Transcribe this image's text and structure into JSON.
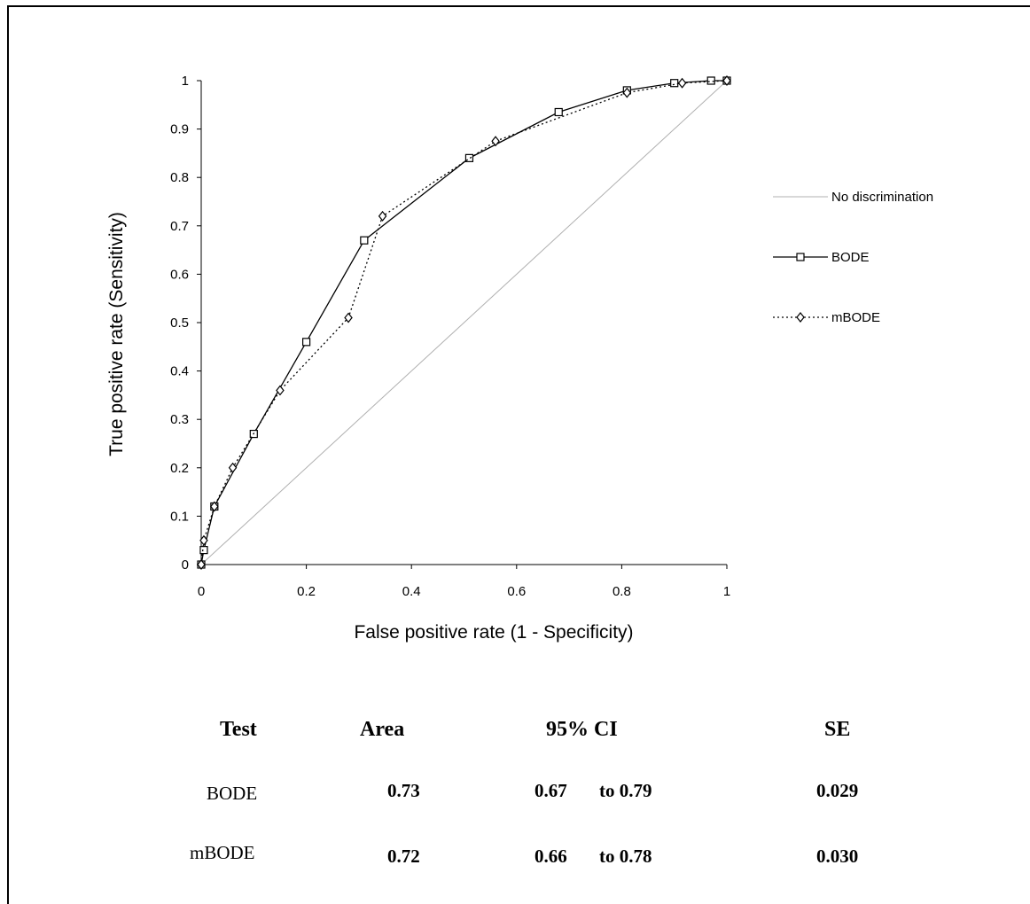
{
  "chart_data": {
    "type": "line",
    "xlabel": "False positive rate (1 - Specificity)",
    "ylabel": "True positive rate (Sensitivity)",
    "xlim": [
      0,
      1
    ],
    "ylim": [
      0,
      1
    ],
    "xticks": [
      "0",
      "0.2",
      "0.4",
      "0.6",
      "0.8",
      "1"
    ],
    "yticks": [
      "0",
      "0.1",
      "0.2",
      "0.3",
      "0.4",
      "0.5",
      "0.6",
      "0.7",
      "0.8",
      "0.9",
      "1"
    ],
    "grid": false,
    "legend_placement": "right",
    "series": [
      {
        "name": "No discrimination",
        "style": "solid-gray",
        "color": "#b0b0b0",
        "marker": "none",
        "x": [
          0,
          1
        ],
        "y": [
          0,
          1
        ]
      },
      {
        "name": "BODE",
        "style": "solid",
        "color": "#000000",
        "marker": "square",
        "x": [
          0,
          0.005,
          0.025,
          0.1,
          0.2,
          0.31,
          0.51,
          0.68,
          0.81,
          0.9,
          0.97,
          1.0
        ],
        "y": [
          0,
          0.03,
          0.12,
          0.27,
          0.46,
          0.67,
          0.84,
          0.935,
          0.98,
          0.995,
          1.0,
          1.0
        ]
      },
      {
        "name": "mBODE",
        "style": "dotted",
        "color": "#000000",
        "marker": "diamond",
        "x": [
          0,
          0.005,
          0.025,
          0.06,
          0.15,
          0.28,
          0.345,
          0.56,
          0.81,
          0.915,
          1.0
        ],
        "y": [
          0,
          0.05,
          0.12,
          0.2,
          0.36,
          0.51,
          0.72,
          0.875,
          0.975,
          0.995,
          1.0
        ]
      }
    ]
  },
  "table": {
    "headers": {
      "test": "Test",
      "area": "Area",
      "ci": "95% CI",
      "se": "SE"
    },
    "rows": [
      {
        "test": "BODE",
        "area": "0.73",
        "ci_low": "0.67",
        "ci_high": "to 0.79",
        "se": "0.029"
      },
      {
        "test": "mBODE",
        "area": "0.72",
        "ci_low": "0.66",
        "ci_high": "to 0.78",
        "se": "0.030"
      }
    ]
  }
}
